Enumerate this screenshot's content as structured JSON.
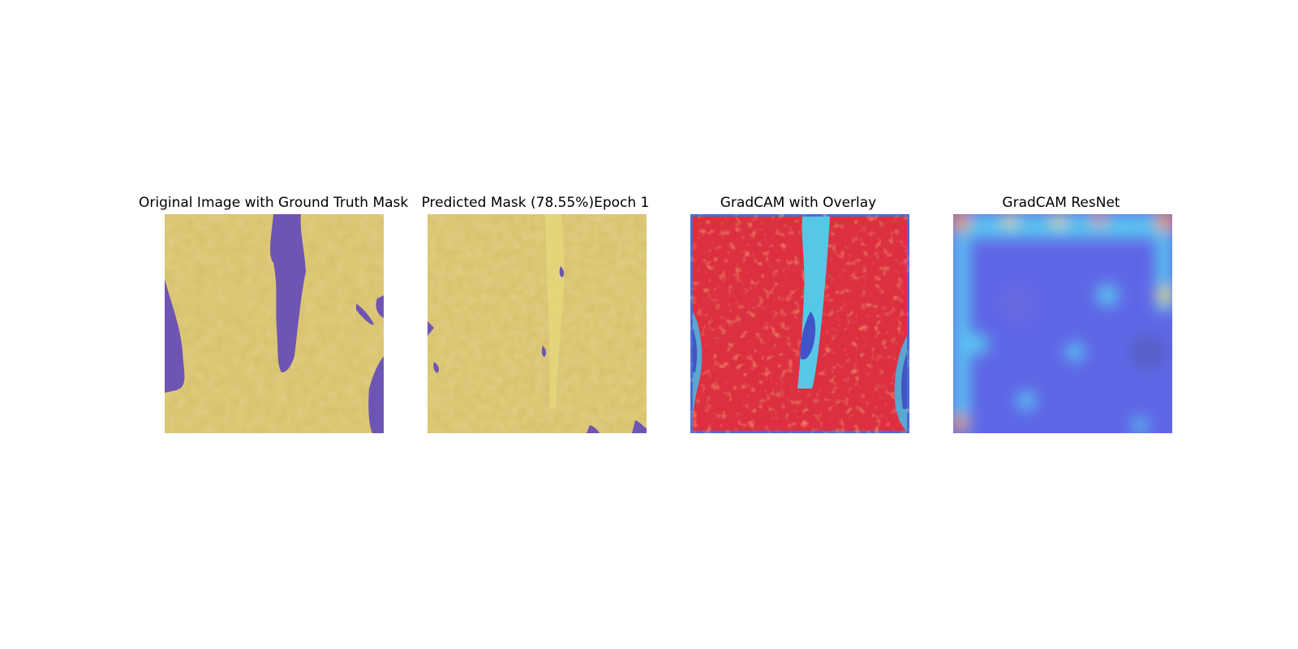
{
  "panels": [
    {
      "id": "gt",
      "title": "Original Image with Ground Truth Mask"
    },
    {
      "id": "pred",
      "title": "Predicted Mask (78.55%)Epoch 1"
    },
    {
      "id": "gradcam",
      "title": "GradCAM with Overlay"
    },
    {
      "id": "resnet",
      "title": "GradCAM ResNet"
    }
  ],
  "colors": {
    "mask_foreground": "#d8c16a",
    "mask_background": "#6e55b4",
    "heat_hot": "#e0303c",
    "heat_cool": "#5560e6",
    "heat_cyan": "#55c8e6"
  }
}
